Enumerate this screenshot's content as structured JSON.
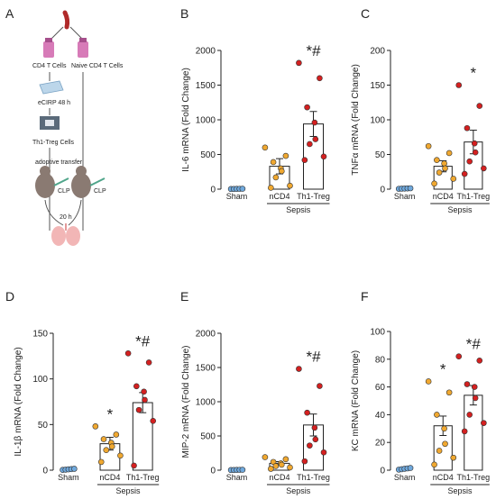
{
  "schematic": {
    "letter": "A",
    "labels": {
      "cd4": "CD4 T Cells",
      "naive": "Naive CD4 T Cells",
      "ecirp": "eCIRP 48 h",
      "th1treg": "Th1-Treg Cells",
      "transfer": "adoptive transfer",
      "clp1": "CLP",
      "clp2": "CLP",
      "time": "20 h"
    }
  },
  "chart_data": [
    {
      "letter": "B",
      "type": "bar",
      "ylabel": "IL-6 mRNA (Fold Change)",
      "ylim": [
        0,
        2000
      ],
      "yticks": [
        0,
        500,
        1000,
        1500,
        2000
      ],
      "categories": [
        "Sham",
        "nCD4",
        "Th1-Treg"
      ],
      "group_label": "Sepsis",
      "means": [
        0,
        330,
        940
      ],
      "sem": [
        0,
        110,
        180
      ],
      "significance": [
        "",
        "",
        "*#"
      ],
      "points": [
        [
          2,
          3,
          4,
          5,
          6
        ],
        [
          600,
          480,
          390,
          300,
          260,
          170,
          50,
          20
        ],
        [
          1820,
          1600,
          1180,
          960,
          720,
          650,
          470,
          420
        ]
      ]
    },
    {
      "letter": "C",
      "type": "bar",
      "ylabel": "TNFα mRNA (Fold Change)",
      "ylim": [
        0,
        200
      ],
      "yticks": [
        0,
        50,
        100,
        150,
        200
      ],
      "categories": [
        "Sham",
        "nCD4",
        "Th1-Treg"
      ],
      "group_label": "Sepsis",
      "means": [
        0,
        33,
        68
      ],
      "sem": [
        0,
        8,
        17
      ],
      "significance": [
        "",
        "",
        "*"
      ],
      "points": [
        [
          0.5,
          0.7,
          0.9,
          1.1,
          1.3
        ],
        [
          62,
          52,
          42,
          37,
          30,
          24,
          15,
          8
        ],
        [
          150,
          120,
          88,
          66,
          53,
          40,
          30,
          22
        ]
      ]
    },
    {
      "letter": "D",
      "type": "bar",
      "ylabel": "IL-1β mRNA (Fold Change)",
      "ylim": [
        0,
        150
      ],
      "yticks": [
        0,
        50,
        100,
        150
      ],
      "categories": [
        "Sham",
        "nCD4",
        "Th1-Treg"
      ],
      "group_label": "Sepsis",
      "means": [
        0,
        29,
        74
      ],
      "sem": [
        0,
        7,
        11
      ],
      "significance": [
        "",
        "*",
        "*#"
      ],
      "points": [
        [
          0.3,
          0.6,
          0.9,
          1.2,
          1.5
        ],
        [
          48,
          39,
          34,
          30,
          26,
          22,
          16,
          9
        ],
        [
          128,
          118,
          92,
          86,
          77,
          66,
          54,
          5
        ]
      ]
    },
    {
      "letter": "E",
      "type": "bar",
      "ylabel": "MIP-2 mRNA (Fold Change)",
      "ylim": [
        0,
        2000
      ],
      "yticks": [
        0,
        500,
        1000,
        1500,
        2000
      ],
      "categories": [
        "Sham",
        "nCD4",
        "Th1-Treg"
      ],
      "group_label": "Sepsis",
      "means": [
        0,
        100,
        660
      ],
      "sem": [
        0,
        25,
        160
      ],
      "significance": [
        "",
        "",
        "*#"
      ],
      "points": [
        [
          2,
          3,
          4,
          5,
          6
        ],
        [
          190,
          160,
          120,
          100,
          80,
          60,
          40,
          20
        ],
        [
          1480,
          1230,
          840,
          620,
          450,
          360,
          260,
          130
        ]
      ]
    },
    {
      "letter": "F",
      "type": "bar",
      "ylabel": "KC mRNA (Fold Change)",
      "ylim": [
        0,
        100
      ],
      "yticks": [
        0,
        20,
        40,
        60,
        80,
        100
      ],
      "categories": [
        "Sham",
        "nCD4",
        "Th1-Treg"
      ],
      "group_label": "Sepsis",
      "means": [
        0,
        32,
        54
      ],
      "sem": [
        0,
        7,
        7
      ],
      "significance": [
        "",
        "*",
        "*#"
      ],
      "points": [
        [
          0.4,
          0.7,
          1,
          1.3,
          1.6
        ],
        [
          64,
          56,
          40,
          30,
          19,
          14,
          9,
          4
        ],
        [
          82,
          79,
          62,
          60,
          52,
          40,
          34,
          28
        ]
      ]
    }
  ],
  "colors": {
    "sham": "#6fa8dc",
    "ncd4": "#f0a830",
    "th1treg": "#d42020",
    "ink": "#222222"
  }
}
